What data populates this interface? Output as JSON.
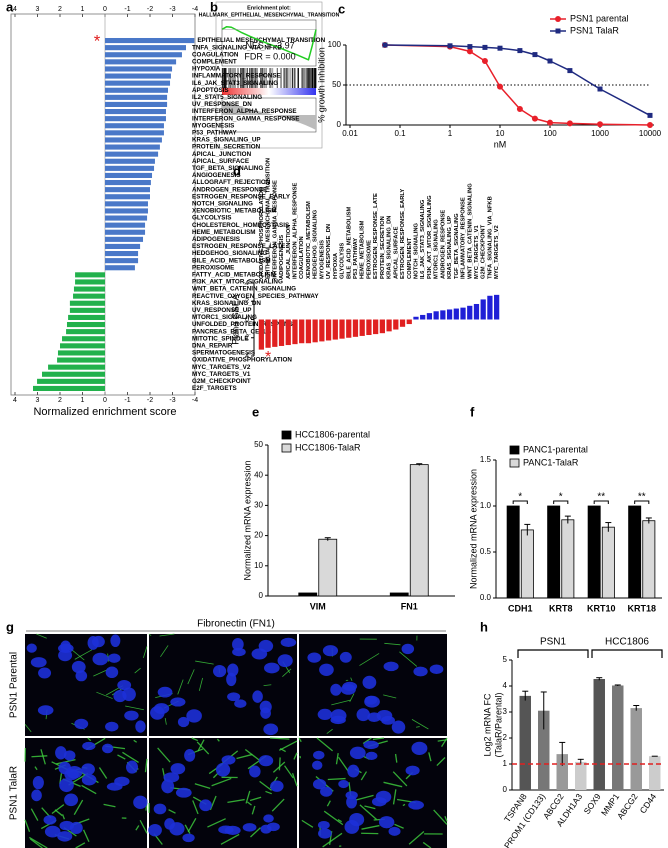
{
  "chart_data": [
    {
      "panel": "a",
      "type": "bar",
      "orientation": "horizontal",
      "categories": [
        "EPITHELIAL MESENCHYMAL TRANSITION",
        "TNFA_SIGNALING_VIA_NFKB",
        "COAGULATION",
        "COMPLEMENT",
        "HYPOXIA",
        "INFLAMMATORY_RESPONSE",
        "IL6_JAK_STAT3_SIGNALING",
        "APOPTOSIS",
        "IL2_STAT5_SIGNALING",
        "UV_RESPONSE_DN",
        "INTERFERON_ALPHA_RESPONSE",
        "INTERFERON_GAMMA_RESPONSE",
        "MYOGENESIS",
        "P53_PATHWAY",
        "KRAS_SIGNALING_UP",
        "PROTEIN_SECRETION",
        "APICAL_JUNCTION",
        "APICAL_SURFACE",
        "TGF_BETA_SIGNALING",
        "ANGIOGENESIS",
        "ALLOGRAFT_REJECTION",
        "ANDROGEN_RESPONSE",
        "ESTROGEN_RESPONSE_EARLY",
        "NOTCH_SIGNALING",
        "XENOBIOTIC_METABOLISM",
        "GLYCOLYSIS",
        "CHOLESTEROL_HOMEOSTASIS",
        "HEME_METABOLISM",
        "ADIPOGENESIS",
        "ESTROGEN_RESPONSE_LATE",
        "HEDGEHOG_SIGNALING",
        "BILE_ACID_METABOLISM",
        "PEROXISOME",
        "FATTY_ACID_METABOLISM",
        "PI3K_AKT_MTOR_SIGNALING",
        "WNT_BETA_CATENIN_SIGNALING",
        "REACTIVE_OXYGEN_SPECIES_PATHWAY",
        "KRAS_SIGNALING_DN",
        "UV_RESPONSE_UP",
        "MTORC1_SIGNALING",
        "UNFOLDED_PROTEIN_RESPONSE",
        "PANCREAS_BETA_CELLS",
        "MITOTIC_SPINDLE",
        "DNA_REPAIR",
        "SPERMATOGENESIS",
        "OXIDATIVE_PHOSPHORYLATION",
        "MYC_TARGETS_V2",
        "MYC_TARGETS_V1",
        "G2M_CHECKPOINT",
        "E2F_TARGETS"
      ],
      "values": [
        -3.97,
        -3.6,
        -3.42,
        -3.16,
        -2.98,
        -2.93,
        -2.89,
        -2.8,
        -2.76,
        -2.76,
        -2.71,
        -2.71,
        -2.62,
        -2.62,
        -2.53,
        -2.44,
        -2.36,
        -2.22,
        -2.18,
        -2.09,
        -2.04,
        -2.0,
        -2.0,
        -1.91,
        -1.91,
        -1.87,
        -1.78,
        -1.78,
        -1.69,
        -1.56,
        -1.47,
        -1.47,
        -1.33,
        1.33,
        1.33,
        1.38,
        1.42,
        1.56,
        1.56,
        1.64,
        1.69,
        1.73,
        1.91,
        2.0,
        2.09,
        2.13,
        2.53,
        2.8,
        3.02,
        3.2
      ],
      "color_negative": "#4a78c8",
      "color_positive": "#22b14c",
      "xlim": [
        4,
        -4
      ],
      "xticks": [
        4,
        3,
        2,
        1,
        0,
        -1,
        -2,
        -3,
        -4
      ],
      "xlabel": "Normalized enrichment score",
      "annotation": "*"
    },
    {
      "panel": "b",
      "type": "line",
      "title": "Enrichment plot:",
      "subtitle": "HALLMARK_EPITHELIAL_MESENCHYMAL_TRANSITION",
      "x": [
        0,
        5,
        10,
        20,
        30,
        40,
        50,
        60,
        70,
        80,
        88,
        92,
        96,
        100
      ],
      "series": [
        {
          "color": "#22cc22",
          "values": [
            0,
            0.05,
            0.04,
            -0.05,
            -0.13,
            -0.2,
            -0.27,
            -0.33,
            -0.4,
            -0.47,
            -0.53,
            -0.56,
            -0.3,
            0
          ]
        }
      ],
      "xlim": [
        0,
        100
      ],
      "ylim": [
        -0.6,
        0.1
      ],
      "annotations": [
        "NES = -3.97",
        "FDR = 0.000"
      ]
    },
    {
      "panel": "c",
      "type": "line",
      "xscale": "log",
      "x": [
        0.05,
        1,
        2.5,
        5,
        10,
        25,
        50,
        100,
        250,
        1000,
        10000
      ],
      "series": [
        {
          "name": "PSN1 parental",
          "color": "#e8202a",
          "marker": "circle",
          "values": [
            100,
            98,
            92,
            80,
            48,
            20,
            8,
            3,
            2,
            1,
            0
          ]
        },
        {
          "name": "PSN1 TalaR",
          "color": "#1f2a80",
          "marker": "square",
          "values": [
            100,
            99,
            98,
            97,
            96,
            93,
            88,
            80,
            68,
            45,
            12
          ]
        }
      ],
      "xlim": [
        0.01,
        10000
      ],
      "xticks": [
        0.01,
        0.1,
        1,
        10,
        100,
        1000,
        10000
      ],
      "ylim": [
        0,
        100
      ],
      "yticks": [
        0,
        50,
        100
      ],
      "hline": 50,
      "xlabel": "nM",
      "ylabel": "% growth inhibition",
      "legend": "upper right"
    },
    {
      "panel": "d",
      "type": "bar",
      "categories": [
        "OXIDATIVE_PHOSPHORYLATION",
        "EPITHELIAL_MESENCHYMAL_TRANSITION",
        "INTERFERON_GAMMA_RESPONSE",
        "ADIPOGENESIS",
        "APICAL_JUNCTION",
        "INTERFERON_ALPHA_RESPONSE",
        "COAGULATION",
        "XENOBIOTIC_METABOLISM",
        "HEDGEHOG_SIGNALING",
        "MYOGENESIS",
        "UV_RESPONSE_DN",
        "HYPOXIA",
        "GLYCOLYSIS",
        "BILE_ACID_METABOLISM",
        "P53_PATHWAY",
        "HEME_METABOLISM",
        "PEROXISOME",
        "ESTROGEN_RESPONSE_LATE",
        "PROTEIN_SECRETION",
        "KRAS_SIGNALING_DN",
        "APICAL_SURFACE",
        "ESTROGEN_RESPONSE_EARLY",
        "COMPLEMENT",
        "NOTCH_SIGNALING",
        "IL6_JAK_STAT3_SIGNALING",
        "PI3K_AKT_MTOR_SIGNALING",
        "MTORC1_SIGNALING",
        "ANDROGEN_RESPONSE",
        "KRAS_SIGNALING_UP",
        "TGF_BETA_SIGNALING",
        "INFLAMMATORY_RESPONSE",
        "WNT_BETA_CATENIN_SIGNALING",
        "MYC_TARGETS_V1",
        "G2M_CHECKPOINT",
        "TNFA_SIGNALING_VIA_NFKB",
        "MYC_TARGETS_V2"
      ],
      "values": [
        3.3,
        3.1,
        3.0,
        2.9,
        2.8,
        2.7,
        2.6,
        2.6,
        2.5,
        2.4,
        2.3,
        2.2,
        2.1,
        2.0,
        1.9,
        1.8,
        1.7,
        1.6,
        1.5,
        1.3,
        1.1,
        0.8,
        0.5,
        -0.3,
        -0.5,
        -0.7,
        -0.9,
        -1.0,
        -1.1,
        -1.2,
        -1.3,
        -1.5,
        -1.7,
        -2.2,
        -2.6,
        -2.7
      ],
      "color_negative": "#1f1fd6",
      "color_positive": "#e02020",
      "ylim": [
        4,
        -4
      ],
      "yticks": [
        -4,
        -2,
        0,
        2,
        4
      ],
      "ylabel": "Piano GSEA",
      "annotation": "*"
    },
    {
      "panel": "e",
      "type": "bar",
      "categories": [
        "VIM",
        "FN1"
      ],
      "series": [
        {
          "name": "HCC1806-parental",
          "color": "#000000",
          "values": [
            1,
            1
          ]
        },
        {
          "name": "HCC1806-TalaR",
          "color": "#d9d9d9",
          "values": [
            18.8,
            43.5
          ],
          "errors": [
            0.5,
            0.3
          ]
        }
      ],
      "ylim": [
        0,
        50
      ],
      "yticks": [
        0,
        10,
        20,
        30,
        40,
        50
      ],
      "ylabel": "Normalized mRNA expression",
      "legend": "upper left"
    },
    {
      "panel": "f",
      "type": "bar",
      "categories": [
        "CDH1",
        "KRT8",
        "KRT10",
        "KRT18"
      ],
      "series": [
        {
          "name": "PANC1-parental",
          "color": "#000000",
          "values": [
            1,
            1,
            1,
            1
          ]
        },
        {
          "name": "PANC1-TalaR",
          "color": "#d9d9d9",
          "values": [
            0.74,
            0.85,
            0.77,
            0.84
          ],
          "errors": [
            0.06,
            0.04,
            0.05,
            0.03
          ]
        }
      ],
      "ylim": [
        0,
        1.5
      ],
      "yticks": [
        {
          "value": 0,
          "label": "0.0"
        },
        {
          "value": 0.5,
          "label": "0.5"
        },
        {
          "value": 1,
          "label": "1.0"
        },
        {
          "value": 1.5,
          "label": "1.5"
        }
      ],
      "ylabel": "Normalized mRNA expression",
      "legend": "upper left",
      "significance": [
        "*",
        "*",
        "**",
        "**"
      ]
    },
    {
      "panel": "h",
      "type": "bar",
      "categories": [
        "TSPAN8",
        "PROM1 (CD133)",
        "ABCG2",
        "ALDH1A3",
        "SOX9",
        "MMP1",
        "ABCG2",
        "CD44"
      ],
      "values": [
        3.62,
        3.05,
        1.38,
        1.08,
        4.27,
        4.02,
        3.15,
        1.3
      ],
      "errors": [
        0.18,
        0.72,
        0.45,
        0.1,
        0.05,
        0.02,
        0.1,
        0
      ],
      "colors": [
        "#555555",
        "#777777",
        "#999999",
        "#cccccc",
        "#555555",
        "#777777",
        "#999999",
        "#cccccc"
      ],
      "ylim": [
        0,
        5
      ],
      "yticks": [
        0,
        1,
        2,
        3,
        4,
        5
      ],
      "ylabel": [
        "Log2 mRNA FC",
        "(TalaR/Parental)"
      ],
      "hline": 1,
      "hline_color": "#e02020",
      "groups": [
        "PSN1",
        "HCC1806"
      ]
    }
  ],
  "image_panel": {
    "panel": "g",
    "title": "Fibronectin (FN1)",
    "rows": [
      "PSN1 Parental",
      "PSN1 TalaR"
    ]
  }
}
